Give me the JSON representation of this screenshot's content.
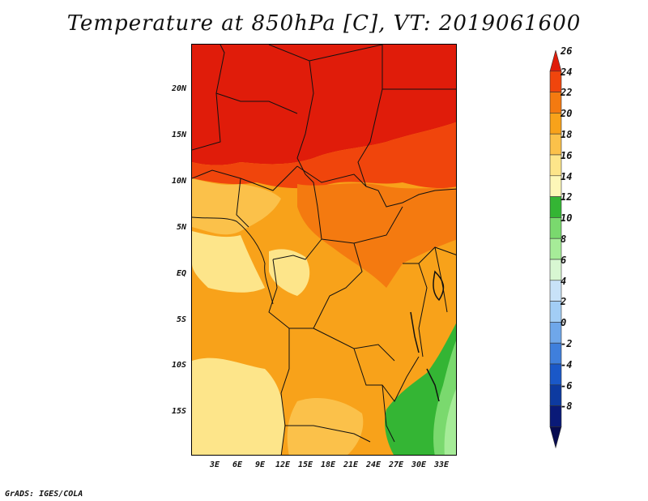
{
  "title": "Temperature at 850hPa [C], VT: 2019061600",
  "credit": "GrADS: IGES/COLA",
  "map": {
    "lat_labels": [
      "20N",
      "15N",
      "10N",
      "5N",
      "EQ",
      "5S",
      "10S",
      "15S"
    ],
    "lon_labels": [
      "3E",
      "6E",
      "9E",
      "12E",
      "15E",
      "18E",
      "21E",
      "24E",
      "27E",
      "30E",
      "33E"
    ]
  },
  "colorbar": {
    "labels": [
      "26",
      "24",
      "22",
      "20",
      "18",
      "16",
      "14",
      "12",
      "10",
      "8",
      "6",
      "4",
      "2",
      "0",
      "-2",
      "-4",
      "-6",
      "-8"
    ],
    "colors": [
      "#e01c0a",
      "#f0450c",
      "#f47a10",
      "#f8a21a",
      "#fbc14a",
      "#fde58a",
      "#fdf7b8",
      "#34b534",
      "#7ad96e",
      "#a6ec98",
      "#d8f7d2",
      "#c8e2f8",
      "#a2cdf5",
      "#6fa7ea",
      "#3f7fdc",
      "#1a58c8",
      "#0d3aa0",
      "#0a1a78",
      "#070b50"
    ]
  },
  "colors": {
    "hot": "#e01c0a",
    "warm": "#f47a10",
    "mild": "#f8a21a",
    "cool": "#fde58a",
    "green": "#34b534"
  }
}
